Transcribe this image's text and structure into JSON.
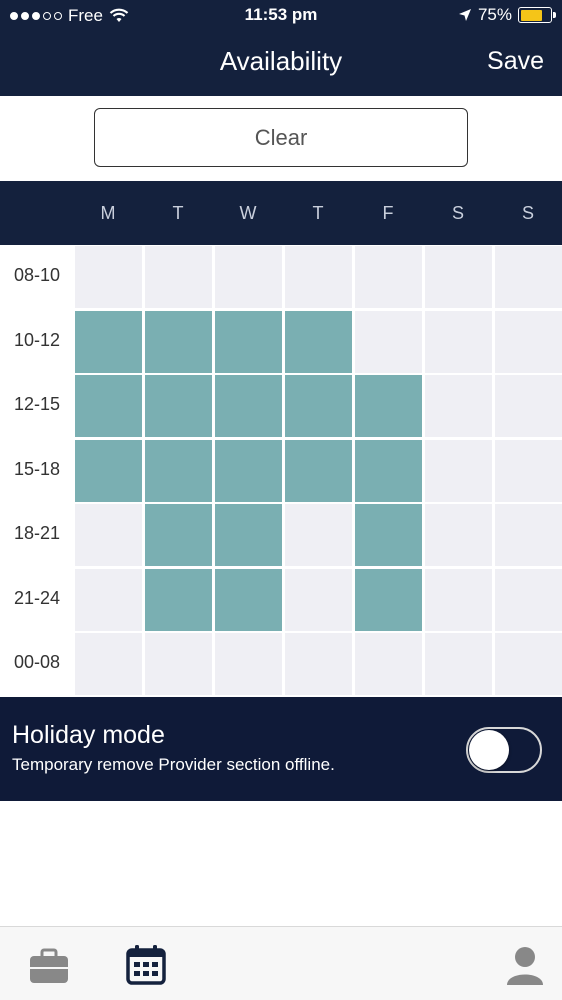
{
  "status_bar": {
    "carrier": "Free",
    "time": "11:53 pm",
    "battery_percent": "75%",
    "battery_level": 0.75,
    "signal_bars_filled": 3,
    "signal_bars_total": 5
  },
  "nav": {
    "title": "Availability",
    "save_label": "Save"
  },
  "clear_label": "Clear",
  "days": [
    "M",
    "T",
    "W",
    "T",
    "F",
    "S",
    "S"
  ],
  "time_slots": [
    "08-10",
    "10-12",
    "12-15",
    "15-18",
    "18-21",
    "21-24",
    "00-08"
  ],
  "availability": [
    [
      false,
      false,
      false,
      false,
      false,
      false,
      false
    ],
    [
      true,
      true,
      true,
      true,
      false,
      false,
      false
    ],
    [
      true,
      true,
      true,
      true,
      true,
      false,
      false
    ],
    [
      true,
      true,
      true,
      true,
      true,
      false,
      false
    ],
    [
      false,
      true,
      true,
      false,
      true,
      false,
      false
    ],
    [
      false,
      true,
      true,
      false,
      true,
      false,
      false
    ],
    [
      false,
      false,
      false,
      false,
      false,
      false,
      false
    ]
  ],
  "holiday": {
    "title": "Holiday mode",
    "subtitle": "Temporary remove Provider section offline.",
    "enabled": false
  },
  "colors": {
    "header_bg": "#14213d",
    "holiday_bg": "#0f1a38",
    "cell_on": "#7aafb2",
    "cell_off": "#efeff4",
    "battery": "#f5c518",
    "tab_active": "#14213d",
    "tab_inactive": "#888888"
  },
  "tabs": [
    {
      "icon": "briefcase-icon",
      "active": false
    },
    {
      "icon": "calendar-icon",
      "active": true
    },
    {
      "icon": "profile-icon",
      "active": false
    }
  ]
}
